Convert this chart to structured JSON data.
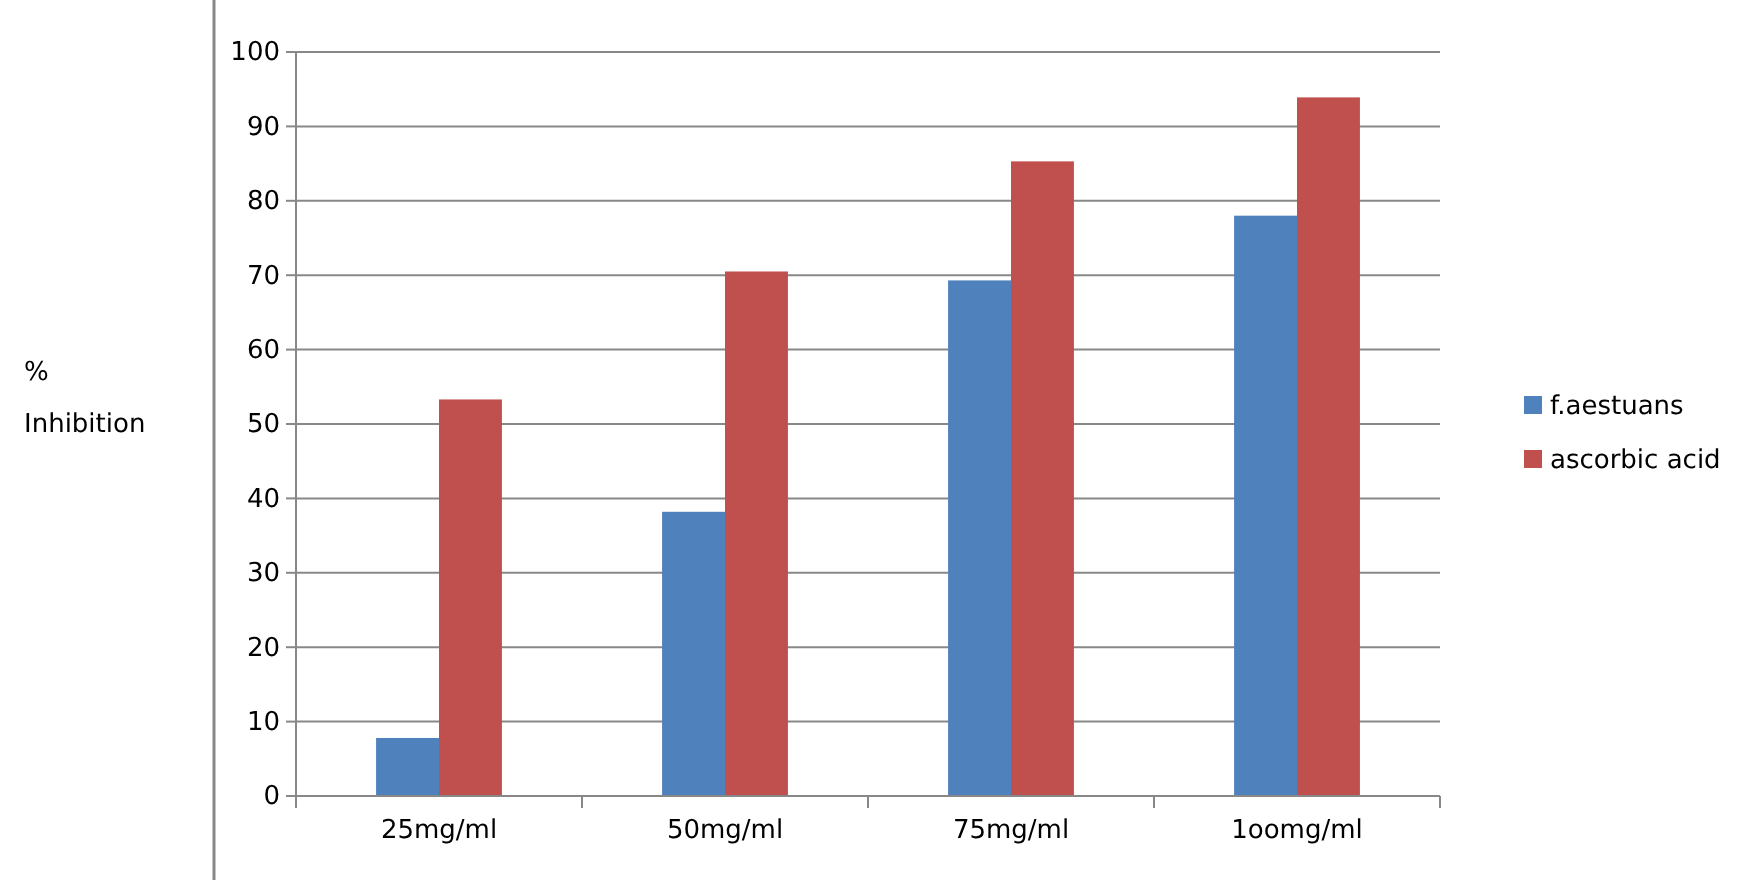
{
  "chart_data": {
    "type": "bar",
    "ylabel": "% Inhibition",
    "categories": [
      "25mg/ml",
      "50mg/ml",
      "75mg/ml",
      "1oomg/ml"
    ],
    "series": [
      {
        "name": "f.aestuans",
        "color": "#4f81bd",
        "values": [
          7.8,
          38.2,
          69.3,
          78
        ]
      },
      {
        "name": "ascorbic acid",
        "color": "#c0504d",
        "values": [
          53.3,
          70.5,
          85.3,
          93.9
        ]
      }
    ],
    "ylim": [
      0,
      100
    ],
    "yticks": [
      0,
      10,
      20,
      30,
      40,
      50,
      60,
      70,
      80,
      90,
      100
    ],
    "grid": "y",
    "legend": "right"
  }
}
